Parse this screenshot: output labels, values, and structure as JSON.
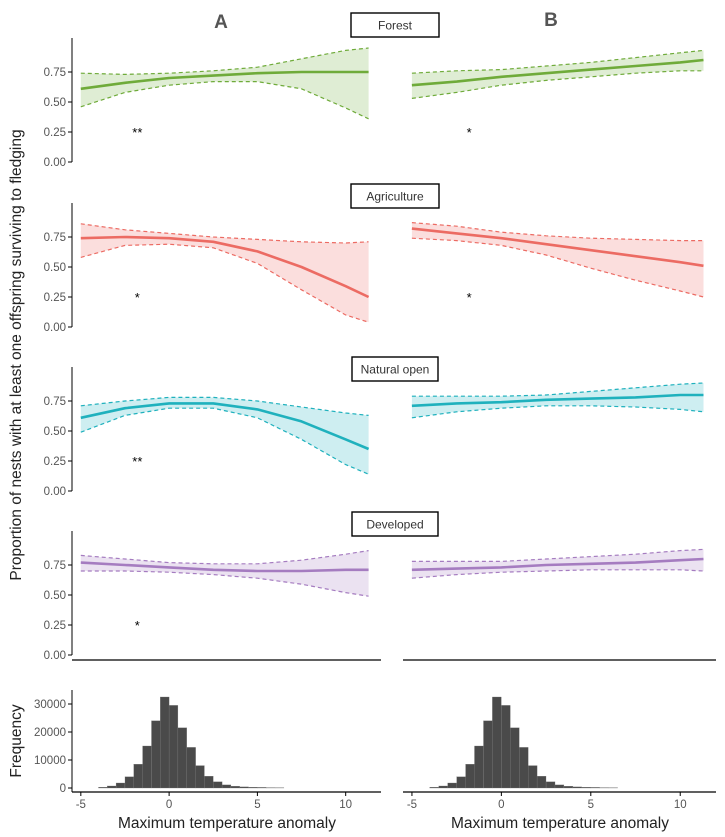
{
  "panel_labels": [
    "A",
    "B"
  ],
  "ylabel": "Proportion of nests with at least one offspring surviving to fledging",
  "hist_ylabel": "Frequency",
  "xlabel": "Maximum temperature anomaly",
  "colors": {
    "Forest": "#6fab3a",
    "Agriculture": "#ec6b63",
    "Natural open": "#1fb1bd",
    "Developed": "#a57cc0",
    "histogram": "#4a4a4a",
    "axis": "#000000",
    "tick_label": "#555555"
  },
  "chart_data": [
    {
      "type": "line",
      "title": "Forest",
      "xlim": [
        -5.5,
        12
      ],
      "ylim": [
        0,
        1
      ],
      "x_ticks": [
        -5,
        0,
        5,
        10
      ],
      "y_ticks": [
        "0.00",
        "0.25",
        "0.50",
        "0.75"
      ],
      "panels": {
        "A": {
          "significance": "**",
          "series": {
            "x": [
              -5,
              -2.5,
              0,
              2.5,
              5,
              7.5,
              10,
              11.3
            ],
            "y": [
              0.61,
              0.66,
              0.7,
              0.72,
              0.74,
              0.75,
              0.75,
              0.75
            ],
            "lower": [
              0.46,
              0.58,
              0.64,
              0.67,
              0.67,
              0.61,
              0.45,
              0.36
            ],
            "upper": [
              0.74,
              0.73,
              0.74,
              0.76,
              0.79,
              0.86,
              0.93,
              0.95
            ]
          }
        },
        "B": {
          "significance": "*",
          "series": {
            "x": [
              -5,
              -2.5,
              0,
              2.5,
              5,
              7.5,
              10,
              11.3
            ],
            "y": [
              0.64,
              0.67,
              0.71,
              0.74,
              0.77,
              0.8,
              0.83,
              0.85
            ],
            "lower": [
              0.53,
              0.58,
              0.64,
              0.68,
              0.71,
              0.74,
              0.76,
              0.76
            ],
            "upper": [
              0.74,
              0.76,
              0.77,
              0.8,
              0.83,
              0.87,
              0.91,
              0.93
            ]
          }
        }
      }
    },
    {
      "type": "line",
      "title": "Agriculture",
      "xlim": [
        -5.5,
        12
      ],
      "ylim": [
        0,
        1
      ],
      "x_ticks": [
        -5,
        0,
        5,
        10
      ],
      "y_ticks": [
        "0.00",
        "0.25",
        "0.50",
        "0.75"
      ],
      "panels": {
        "A": {
          "significance": "*",
          "series": {
            "x": [
              -5,
              -2.5,
              0,
              2.5,
              5,
              7.5,
              10,
              11.3
            ],
            "y": [
              0.74,
              0.75,
              0.74,
              0.71,
              0.63,
              0.5,
              0.34,
              0.25
            ],
            "lower": [
              0.58,
              0.68,
              0.69,
              0.66,
              0.53,
              0.31,
              0.1,
              0.04
            ],
            "upper": [
              0.86,
              0.81,
              0.78,
              0.75,
              0.73,
              0.71,
              0.7,
              0.71
            ]
          }
        },
        "B": {
          "significance": "*",
          "series": {
            "x": [
              -5,
              -2.5,
              0,
              2.5,
              5,
              7.5,
              10,
              11.3
            ],
            "y": [
              0.82,
              0.78,
              0.74,
              0.69,
              0.64,
              0.59,
              0.54,
              0.51
            ],
            "lower": [
              0.74,
              0.72,
              0.68,
              0.6,
              0.49,
              0.39,
              0.3,
              0.25
            ],
            "upper": [
              0.87,
              0.84,
              0.79,
              0.76,
              0.74,
              0.73,
              0.72,
              0.72
            ]
          }
        }
      }
    },
    {
      "type": "line",
      "title": "Natural open",
      "xlim": [
        -5.5,
        12
      ],
      "ylim": [
        0,
        1
      ],
      "x_ticks": [
        -5,
        0,
        5,
        10
      ],
      "y_ticks": [
        "0.00",
        "0.25",
        "0.50",
        "0.75"
      ],
      "panels": {
        "A": {
          "significance": "**",
          "series": {
            "x": [
              -5,
              -2.5,
              0,
              2.5,
              5,
              7.5,
              10,
              11.3
            ],
            "y": [
              0.61,
              0.69,
              0.73,
              0.73,
              0.68,
              0.58,
              0.43,
              0.35
            ],
            "lower": [
              0.49,
              0.63,
              0.69,
              0.69,
              0.61,
              0.43,
              0.22,
              0.14
            ],
            "upper": [
              0.71,
              0.75,
              0.78,
              0.78,
              0.75,
              0.7,
              0.65,
              0.63
            ]
          }
        },
        "B": {
          "series": {
            "x": [
              -5,
              -2.5,
              0,
              2.5,
              5,
              7.5,
              10,
              11.3
            ],
            "y": [
              0.71,
              0.73,
              0.74,
              0.76,
              0.77,
              0.78,
              0.8,
              0.8
            ],
            "lower": [
              0.61,
              0.66,
              0.69,
              0.71,
              0.71,
              0.7,
              0.68,
              0.66
            ],
            "upper": [
              0.79,
              0.79,
              0.79,
              0.8,
              0.83,
              0.86,
              0.89,
              0.9
            ]
          }
        }
      }
    },
    {
      "type": "line",
      "title": "Developed",
      "xlim": [
        -5.5,
        12
      ],
      "ylim": [
        0,
        1
      ],
      "x_ticks": [
        -5,
        0,
        5,
        10
      ],
      "y_ticks": [
        "0.00",
        "0.25",
        "0.50",
        "0.75"
      ],
      "panels": {
        "A": {
          "significance": "*",
          "series": {
            "x": [
              -5,
              -2.5,
              0,
              2.5,
              5,
              7.5,
              10,
              11.3
            ],
            "y": [
              0.77,
              0.75,
              0.73,
              0.71,
              0.7,
              0.7,
              0.71,
              0.71
            ],
            "lower": [
              0.7,
              0.7,
              0.69,
              0.67,
              0.64,
              0.59,
              0.52,
              0.49
            ],
            "upper": [
              0.83,
              0.8,
              0.77,
              0.76,
              0.76,
              0.79,
              0.84,
              0.87
            ]
          }
        },
        "B": {
          "series": {
            "x": [
              -5,
              -2.5,
              0,
              2.5,
              5,
              7.5,
              10,
              11.3
            ],
            "y": [
              0.71,
              0.72,
              0.73,
              0.75,
              0.76,
              0.77,
              0.79,
              0.8
            ],
            "lower": [
              0.64,
              0.67,
              0.69,
              0.7,
              0.71,
              0.71,
              0.71,
              0.7
            ],
            "upper": [
              0.78,
              0.78,
              0.78,
              0.8,
              0.82,
              0.84,
              0.87,
              0.88
            ]
          }
        }
      }
    },
    {
      "type": "bar",
      "title": "",
      "ylabel": "Frequency",
      "xlabel": "Maximum temperature anomaly",
      "xlim": [
        -5.5,
        12
      ],
      "ylim": [
        0,
        35000
      ],
      "x_ticks": [
        -5,
        0,
        5,
        10
      ],
      "y_ticks": [
        "0",
        "10000",
        "20000",
        "30000"
      ],
      "bin_width": 0.5,
      "bin_centers": [
        -3.75,
        -3.25,
        -2.75,
        -2.25,
        -1.75,
        -1.25,
        -0.75,
        -0.25,
        0.25,
        0.75,
        1.25,
        1.75,
        2.25,
        2.75,
        3.25,
        3.75,
        4.25,
        4.75,
        5.25,
        5.75,
        6.25
      ],
      "values": [
        300,
        700,
        1800,
        4000,
        8500,
        15000,
        24000,
        32500,
        29500,
        21500,
        14500,
        8000,
        4200,
        2200,
        1100,
        650,
        400,
        300,
        200,
        150,
        100
      ],
      "panels": [
        "A",
        "B"
      ]
    }
  ]
}
